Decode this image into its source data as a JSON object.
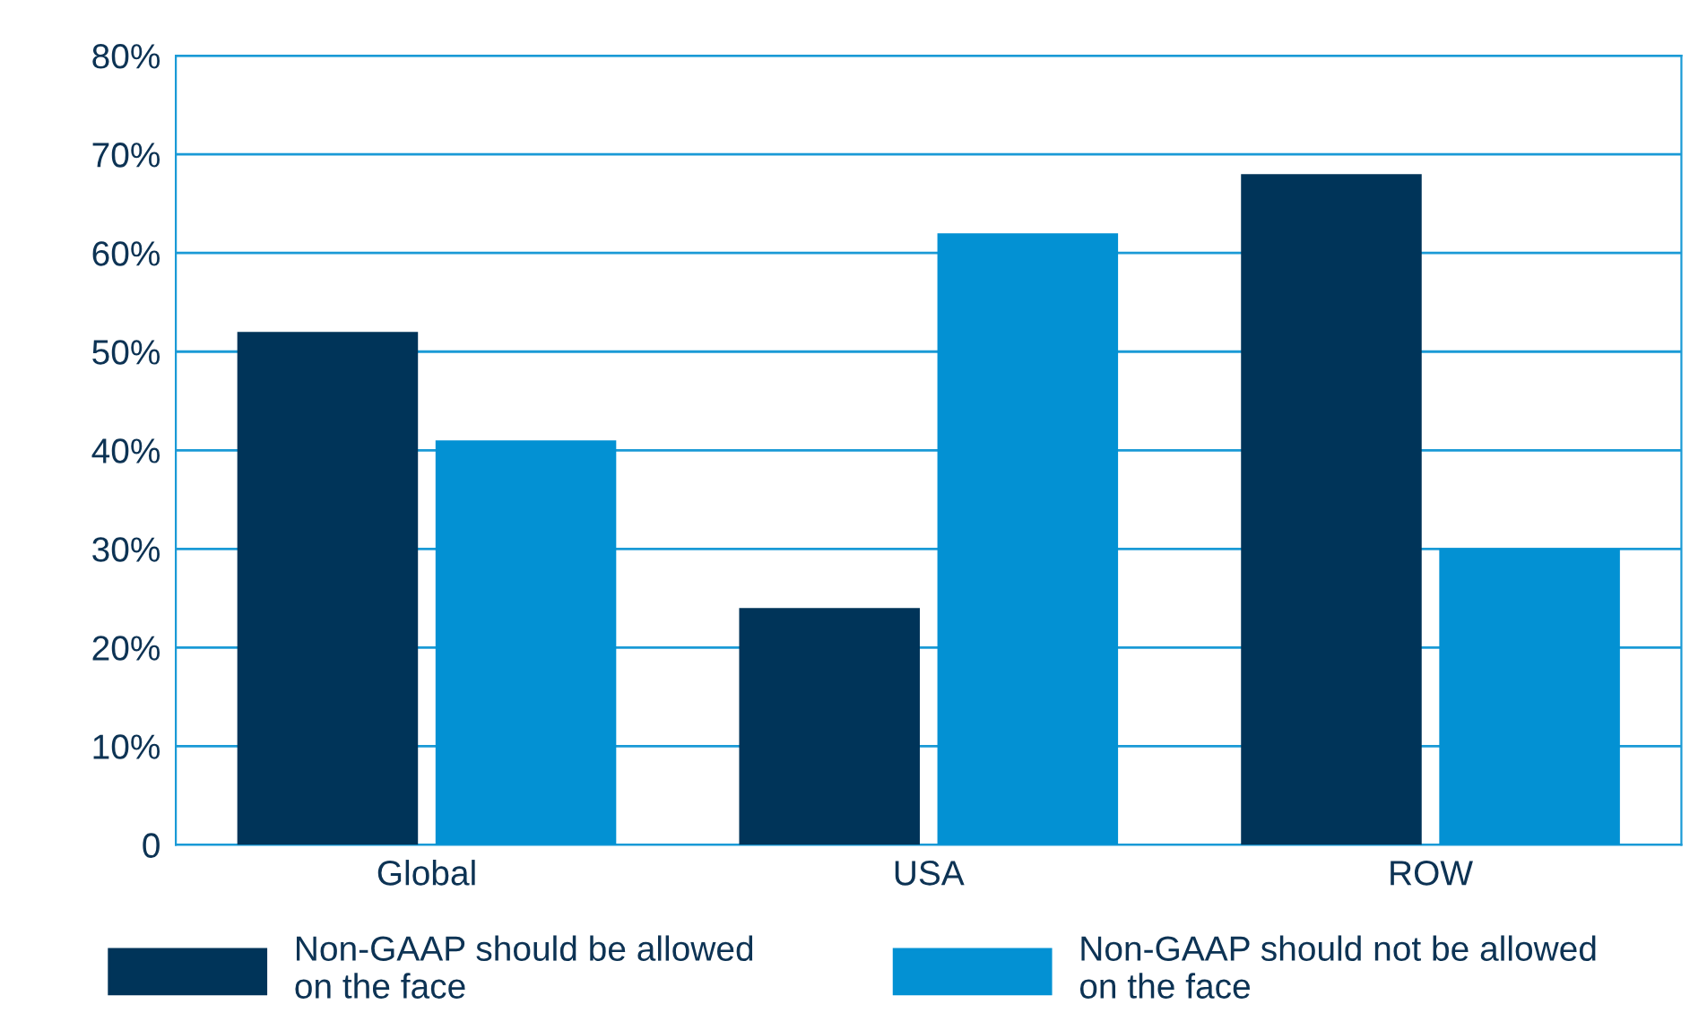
{
  "chart_data": {
    "type": "bar",
    "categories": [
      "Global",
      "USA",
      "ROW"
    ],
    "series": [
      {
        "name": "Non-GAAP should be allowed\non the face",
        "color": "#003459",
        "values": [
          52,
          24,
          68
        ]
      },
      {
        "name": "Non-GAAP should not be allowed\non the face",
        "color": "#0391d3",
        "values": [
          41,
          62,
          30
        ]
      }
    ],
    "ylim": [
      0,
      80
    ],
    "yticks": [
      {
        "value": 0,
        "label": "0"
      },
      {
        "value": 10,
        "label": "10%"
      },
      {
        "value": 20,
        "label": "20%"
      },
      {
        "value": 30,
        "label": "30%"
      },
      {
        "value": 40,
        "label": "40%"
      },
      {
        "value": 50,
        "label": "50%"
      },
      {
        "value": 60,
        "label": "60%"
      },
      {
        "value": 70,
        "label": "70%"
      },
      {
        "value": 80,
        "label": "80%"
      }
    ],
    "grid": "y",
    "legend": "bottom"
  }
}
